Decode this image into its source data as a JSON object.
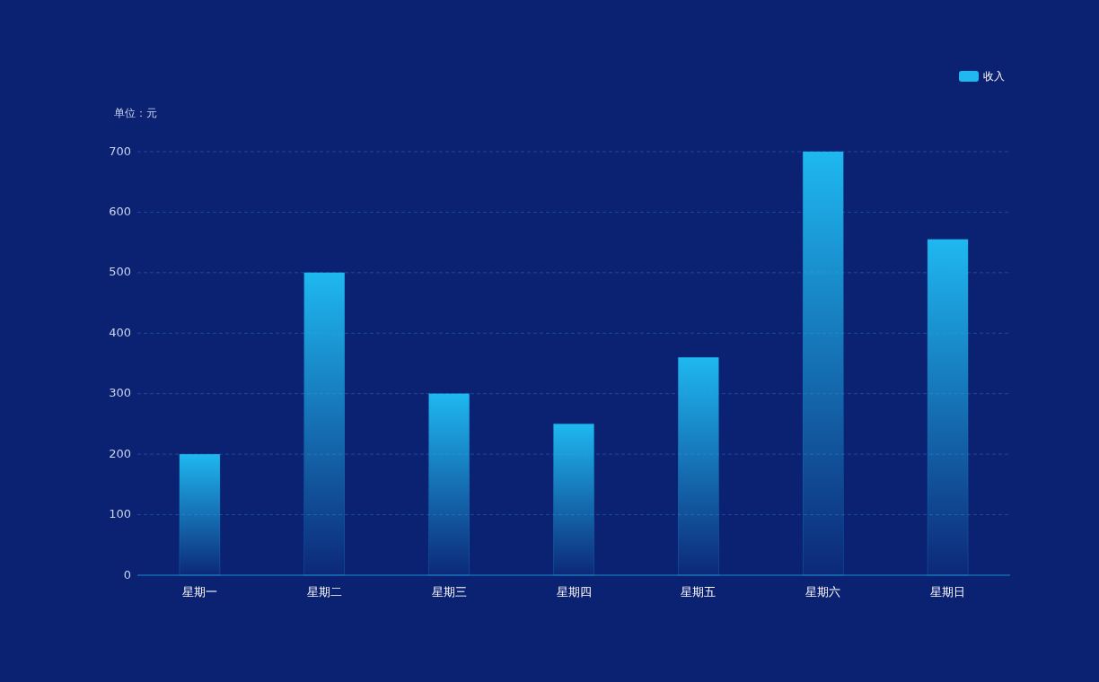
{
  "chart_data": {
    "type": "bar",
    "ylabel": "单位：元",
    "categories": [
      "星期一",
      "星期二",
      "星期三",
      "星期四",
      "星期五",
      "星期六",
      "星期日"
    ],
    "series": [
      {
        "name": "收入",
        "color": "#1fb8f0",
        "values": [
          200,
          500,
          300,
          250,
          360,
          700,
          555
        ]
      }
    ],
    "ylim": [
      0,
      700
    ],
    "yticks": [
      0,
      100,
      200,
      300,
      400,
      500,
      600,
      700
    ],
    "grid": "y",
    "legend": "top right"
  }
}
